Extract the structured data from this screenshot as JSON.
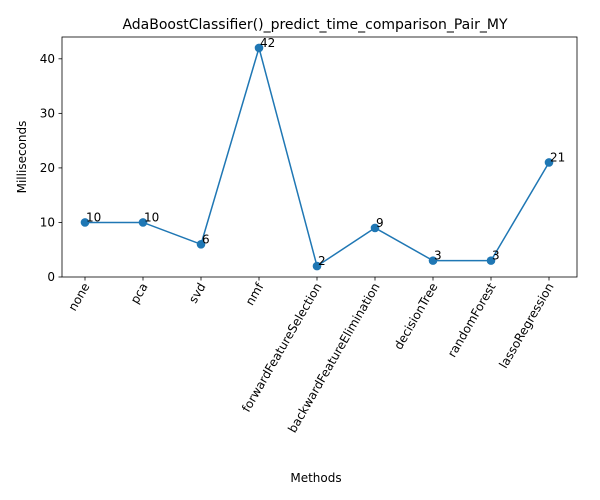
{
  "chart_data": {
    "type": "line",
    "title": "AdaBoostClassifier()_predict_time_comparison_Pair_MY",
    "xlabel": "Methods",
    "ylabel": "Milliseconds",
    "categories": [
      "none",
      "pca",
      "svd",
      "nmf",
      "forwardFeatureSelection",
      "backwardFeatureElimination",
      "decisionTree",
      "randomForest",
      "lassoRegression"
    ],
    "values": [
      10,
      10,
      6,
      42,
      2,
      9,
      3,
      3,
      21
    ],
    "data_labels": [
      "10",
      "10",
      "6",
      "42",
      "2",
      "9",
      "3",
      "3",
      "21"
    ],
    "ylim": [
      0,
      44
    ],
    "yticks": [
      0,
      10,
      20,
      30,
      40
    ],
    "ytick_labels": [
      "0",
      "10",
      "20",
      "30",
      "40"
    ],
    "grid": false,
    "marker": "circle",
    "color": "#1f77b4",
    "tick_rotation_deg": 60
  }
}
